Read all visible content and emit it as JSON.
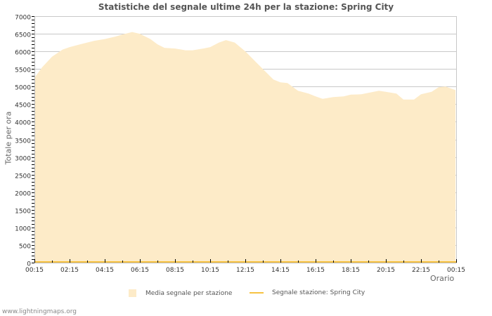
{
  "title": "Statistiche del segnale ultime 24h per la stazione: Spring City",
  "footer": "www.lightningmaps.org",
  "colors": {
    "area": "#fdebc8",
    "line": "#f6c242",
    "grid": "#c8c8c8",
    "axis": "#bbbbbb",
    "text": "#555555"
  },
  "legend": [
    {
      "label": "Media segnale per stazione",
      "type": "area"
    },
    {
      "label": "Segnale stazione: Spring City",
      "type": "line"
    }
  ],
  "chart_data": {
    "type": "area",
    "title": "Statistiche del segnale ultime 24h per la stazione: Spring City",
    "xlabel": "Orario",
    "ylabel": "Totale per ora",
    "ylim": [
      0,
      7000
    ],
    "yticks": [
      0,
      500,
      1000,
      1500,
      2000,
      2500,
      3000,
      3500,
      4000,
      4500,
      5000,
      5500,
      6000,
      6500,
      7000
    ],
    "xticks": [
      "00:15",
      "02:15",
      "04:15",
      "06:15",
      "08:15",
      "10:15",
      "12:15",
      "14:15",
      "16:15",
      "18:15",
      "20:15",
      "22:15",
      "00:15"
    ],
    "grid": true,
    "legend_position": "bottom",
    "series": [
      {
        "name": "Media segnale per stazione",
        "style": "area",
        "x_hours": [
          0,
          0.44,
          1,
          1.6,
          2,
          2.6,
          3,
          3.4,
          4,
          4.6,
          5,
          5.56,
          6,
          6.6,
          7,
          7.4,
          8,
          8.6,
          9,
          9.6,
          10,
          10.5,
          10.9,
          11.4,
          12,
          12.6,
          13,
          13.6,
          14,
          14.4,
          15,
          15.6,
          16,
          16.4,
          17,
          17.6,
          18,
          18.6,
          19,
          19.6,
          20,
          20.6,
          21,
          21.6,
          22,
          22.6,
          23,
          23.4,
          23.96
        ],
        "values": [
          5250,
          5550,
          5850,
          6050,
          6120,
          6200,
          6250,
          6300,
          6350,
          6420,
          6480,
          6550,
          6500,
          6350,
          6200,
          6100,
          6080,
          6030,
          6030,
          6080,
          6120,
          6250,
          6320,
          6250,
          6000,
          5700,
          5500,
          5200,
          5120,
          5100,
          4880,
          4800,
          4720,
          4650,
          4700,
          4720,
          4770,
          4780,
          4820,
          4880,
          4850,
          4800,
          4630,
          4630,
          4780,
          4850,
          4980,
          5000,
          4900
        ]
      },
      {
        "name": "Segnale stazione: Spring City",
        "style": "line",
        "x_hours": [
          0,
          24
        ],
        "values": [
          0,
          0
        ]
      }
    ]
  }
}
